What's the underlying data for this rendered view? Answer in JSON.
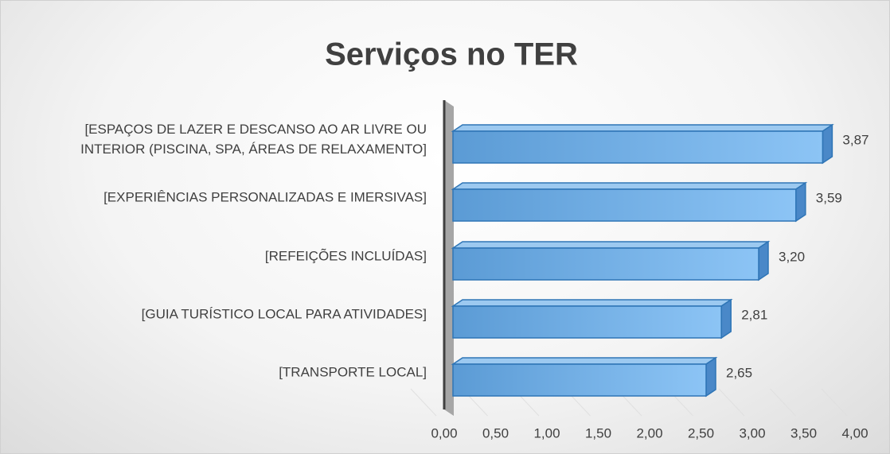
{
  "chart_data": {
    "type": "bar",
    "orientation": "horizontal",
    "title": "Serviços no TER",
    "categories": [
      "[ESPAÇOS DE LAZER E DESCANSO AO AR LIVRE OU\nINTERIOR (PISCINA, SPA, ÁREAS DE RELAXAMENTO]",
      "[EXPERIÊNCIAS PERSONALIZADAS E IMERSIVAS]",
      "[REFEIÇÕES INCLUÍDAS]",
      "[GUIA TURÍSTICO LOCAL PARA ATIVIDADES]",
      "[TRANSPORTE LOCAL]"
    ],
    "values": [
      3.87,
      3.59,
      3.2,
      2.81,
      2.65
    ],
    "value_labels": [
      "3,87",
      "3,59",
      "3,20",
      "2,81",
      "2,65"
    ],
    "color": "#5b9bd5",
    "xlim": [
      0,
      4
    ],
    "xticks": [
      {
        "value": 0,
        "label": "0,00"
      },
      {
        "value": 0.5,
        "label": "0,50"
      },
      {
        "value": 1,
        "label": "1,00"
      },
      {
        "value": 1.5,
        "label": "1,50"
      },
      {
        "value": 2,
        "label": "2,00"
      },
      {
        "value": 2.5,
        "label": "2,50"
      },
      {
        "value": 3,
        "label": "3,00"
      },
      {
        "value": 3.5,
        "label": "3,50"
      },
      {
        "value": 4,
        "label": "4,00"
      }
    ]
  }
}
